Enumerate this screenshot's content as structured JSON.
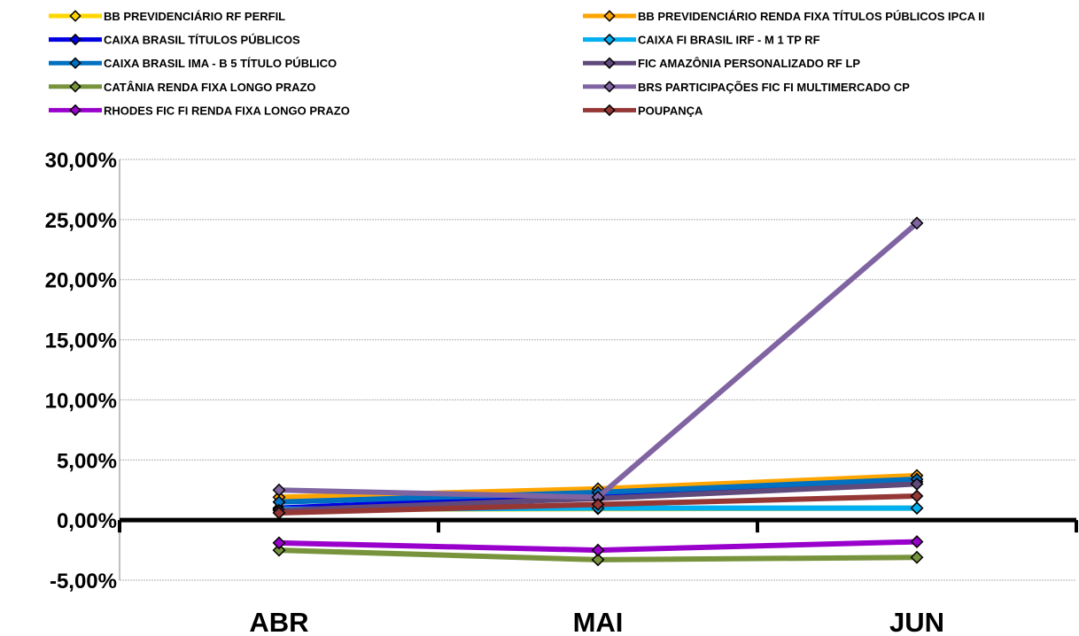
{
  "chart_data": {
    "type": "line",
    "categories": [
      "ABR",
      "MAI",
      "JUN"
    ],
    "ylim": [
      -5,
      30
    ],
    "ytick_values": [
      -5,
      0,
      5,
      10,
      15,
      20,
      25,
      30
    ],
    "ytick_labels": [
      "-5,00%",
      "0,00%",
      "5,00%",
      "10,00%",
      "15,00%",
      "20,00%",
      "25,00%",
      "30,00%"
    ],
    "grid": "horizontal",
    "legend_position": "top",
    "series": [
      {
        "name": "BB PREVIDENCIÁRIO RF PERFIL",
        "color": "#FFD700",
        "values": [
          0.9,
          0.95,
          1.0
        ]
      },
      {
        "name": "BB PREVIDENCIÁRIO RENDA FIXA TÍTULOS PÚBLICOS IPCA II",
        "color": "#FFA500",
        "values": [
          1.9,
          2.6,
          3.7
        ]
      },
      {
        "name": "CAIXA BRASIL TÍTULOS PÚBLICOS",
        "color": "#0000E0",
        "values": [
          1.0,
          2.1,
          3.2
        ]
      },
      {
        "name": "CAIXA FI BRASIL IRF - M 1 TP RF",
        "color": "#00B0F0",
        "values": [
          0.9,
          1.0,
          1.0
        ]
      },
      {
        "name": "CAIXA BRASIL IMA - B 5 TÍTULO PÚBLICO",
        "color": "#0070C0",
        "values": [
          1.5,
          2.3,
          3.4
        ]
      },
      {
        "name": "FIC AMAZÔNIA PERSONALIZADO RF LP",
        "color": "#604A7B",
        "values": [
          0.8,
          1.8,
          3.0
        ]
      },
      {
        "name": "CATÂNIA RENDA FIXA LONGO PRAZO",
        "color": "#77933C",
        "values": [
          -2.5,
          -3.3,
          -3.1
        ]
      },
      {
        "name": "BRS PARTICIPAÇÕES FIC FI MULTIMERCADO CP",
        "color": "#8064A2",
        "values": [
          2.5,
          1.9,
          24.7
        ]
      },
      {
        "name": "RHODES FIC FI RENDA FIXA LONGO PRAZO",
        "color": "#9900CC",
        "values": [
          -1.9,
          -2.5,
          -1.8
        ]
      },
      {
        "name": "POUPANÇA",
        "color": "#953735",
        "values": [
          0.6,
          1.3,
          2.0
        ]
      }
    ]
  }
}
